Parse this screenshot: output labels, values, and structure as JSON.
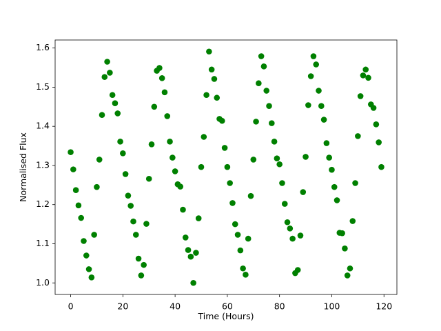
{
  "chart_data": {
    "type": "scatter",
    "xlabel": "Time (Hours)",
    "ylabel": "Normalised Flux",
    "x": [
      0,
      1,
      2,
      3,
      4,
      5,
      6,
      7,
      8,
      9,
      10,
      11,
      12,
      13,
      14,
      15,
      16,
      17,
      18,
      19,
      20,
      21,
      22,
      23,
      24,
      25,
      26,
      27,
      28,
      29,
      30,
      31,
      32,
      33,
      34,
      35,
      36,
      37,
      38,
      39,
      40,
      41,
      42,
      43,
      44,
      45,
      46,
      47,
      48,
      49,
      50,
      51,
      52,
      53,
      54,
      55,
      56,
      57,
      58,
      59,
      60,
      61,
      62,
      63,
      64,
      65,
      66,
      67,
      68,
      69,
      70,
      71,
      72,
      73,
      74,
      75,
      76,
      77,
      78,
      79,
      80,
      81,
      82,
      83,
      84,
      85,
      86,
      87,
      88,
      89,
      90,
      91,
      92,
      93,
      94,
      95,
      96,
      97,
      98,
      99,
      100,
      101,
      102,
      103,
      104,
      105,
      106,
      107,
      108,
      109,
      110,
      111,
      112,
      113,
      114,
      115,
      116,
      117,
      118,
      119
    ],
    "values": [
      1.334,
      1.29,
      1.237,
      1.198,
      1.166,
      1.107,
      1.07,
      1.035,
      1.014,
      1.123,
      1.245,
      1.315,
      1.429,
      1.526,
      1.565,
      1.537,
      1.48,
      1.459,
      1.433,
      1.361,
      1.331,
      1.278,
      1.223,
      1.197,
      1.157,
      1.123,
      1.062,
      1.019,
      1.046,
      1.151,
      1.266,
      1.354,
      1.45,
      1.542,
      1.549,
      1.523,
      1.487,
      1.426,
      1.361,
      1.32,
      1.285,
      1.252,
      1.246,
      1.187,
      1.116,
      1.084,
      1.067,
      1.0,
      1.077,
      1.165,
      1.296,
      1.373,
      1.48,
      1.591,
      1.545,
      1.521,
      1.473,
      1.419,
      1.414,
      1.345,
      1.296,
      1.255,
      1.204,
      1.15,
      1.123,
      1.083,
      1.037,
      1.021,
      1.113,
      1.222,
      1.315,
      1.412,
      1.51,
      1.579,
      1.553,
      1.491,
      1.452,
      1.408,
      1.361,
      1.318,
      1.303,
      1.255,
      1.202,
      1.155,
      1.139,
      1.113,
      1.025,
      1.033,
      1.121,
      1.232,
      1.322,
      1.454,
      1.528,
      1.579,
      1.558,
      1.491,
      1.452,
      1.417,
      1.357,
      1.32,
      1.289,
      1.245,
      1.211,
      1.128,
      1.127,
      1.088,
      1.019,
      1.037,
      1.158,
      1.255,
      1.375,
      1.477,
      1.53,
      1.545,
      1.524,
      1.456,
      1.447,
      1.405,
      1.359,
      1.296
    ],
    "color": "#008000",
    "xlim": [
      -5.95,
      124.95
    ],
    "ylim": [
      0.9705,
      1.6205
    ],
    "xticks": [
      0,
      20,
      40,
      60,
      80,
      100,
      120
    ],
    "yticks": [
      {
        "value": 1,
        "label": "1.0"
      },
      1.1,
      1.2,
      1.3,
      1.4,
      1.5,
      1.6
    ],
    "grid": false
  }
}
